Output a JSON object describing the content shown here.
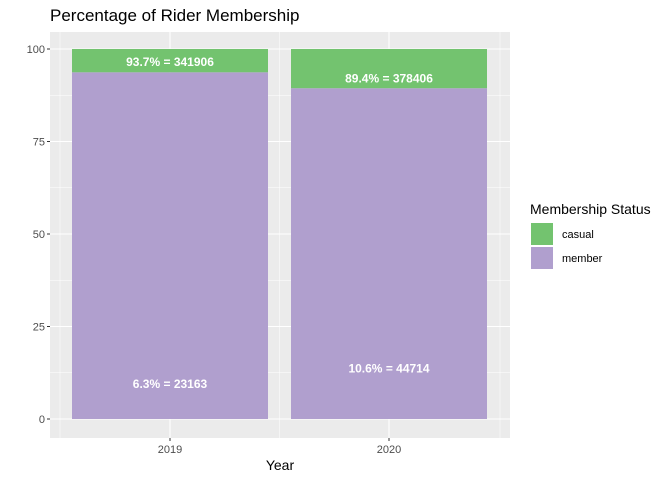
{
  "chart_data": {
    "type": "bar",
    "stacked": true,
    "title": "Percentage of Rider Membership",
    "xlabel": "Year",
    "ylabel": "",
    "ylim": [
      0,
      100
    ],
    "yticks": [
      0,
      25,
      50,
      75,
      100
    ],
    "categories": [
      "2019",
      "2020"
    ],
    "series": [
      {
        "name": "casual",
        "color": "#73C36F",
        "values": [
          6.3,
          10.6
        ]
      },
      {
        "name": "member",
        "color": "#B09FCE",
        "values": [
          93.7,
          89.4
        ]
      }
    ],
    "annotations": [
      {
        "category": "2019",
        "y": 96.5,
        "text": "93.7% = 341906"
      },
      {
        "category": "2020",
        "y": 92.0,
        "text": "89.4% = 378406"
      },
      {
        "category": "2019",
        "y": 9.5,
        "text": "6.3% = 23163"
      },
      {
        "category": "2020",
        "y": 13.6,
        "text": "10.6% = 44714"
      }
    ],
    "legend": {
      "title": "Membership Status",
      "position": "right"
    },
    "grid": true,
    "panel_background": "#EBEBEB",
    "grid_color": "#FFFFFF"
  }
}
